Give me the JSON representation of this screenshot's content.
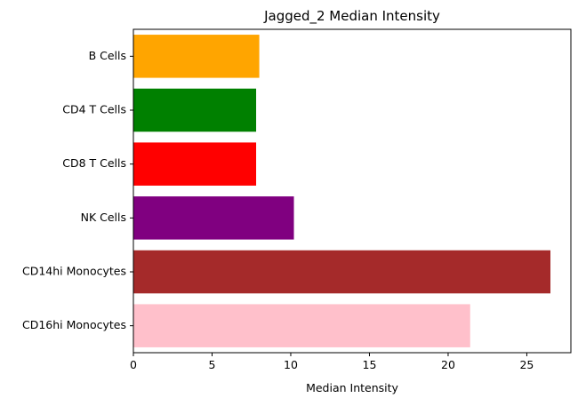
{
  "chart_data": {
    "type": "bar",
    "orientation": "horizontal",
    "title": "Jagged_2 Median Intensity",
    "xlabel": "Median Intensity",
    "ylabel": "",
    "xlim": [
      0,
      27.8
    ],
    "xticks": [
      0,
      5,
      10,
      15,
      20,
      25
    ],
    "grid": false,
    "categories": [
      "B Cells",
      "CD4 T Cells",
      "CD8 T Cells",
      "NK Cells",
      "CD14hi Monocytes",
      "CD16hi Monocytes"
    ],
    "values": [
      8.0,
      7.8,
      7.8,
      10.2,
      26.5,
      21.4
    ],
    "colors": [
      "#ffa500",
      "#008000",
      "#ff0000",
      "#800080",
      "#a52a2a",
      "#ffc0cb"
    ]
  }
}
